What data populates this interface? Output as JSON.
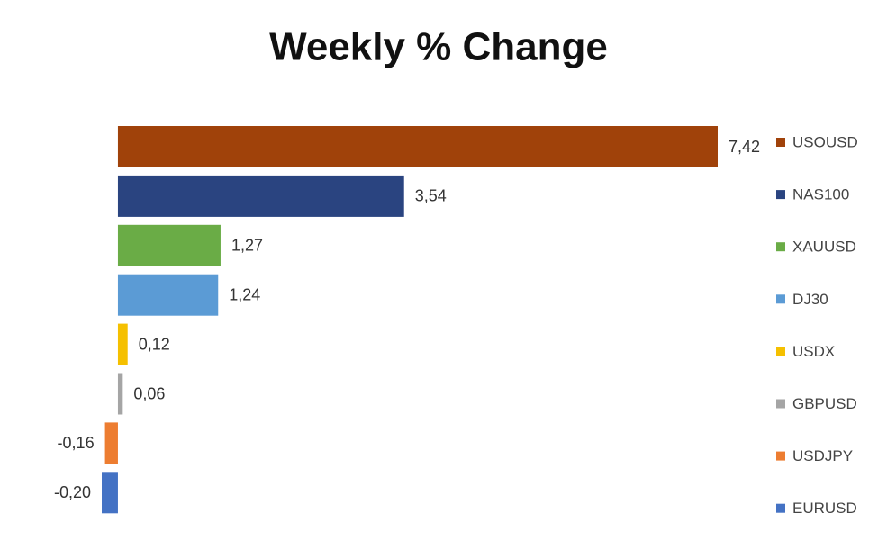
{
  "chart_data": {
    "type": "bar",
    "orientation": "horizontal",
    "title": "Weekly % Change",
    "categories": [
      "USOUSD",
      "NAS100",
      "XAUUSD",
      "DJ30",
      "USDX",
      "GBPUSD",
      "USDJPY",
      "EURUSD"
    ],
    "values": [
      7.42,
      3.54,
      1.27,
      1.24,
      0.12,
      0.06,
      -0.16,
      -0.2
    ],
    "value_labels": [
      "7,42",
      "3,54",
      "1,27",
      "1,24",
      "0,12",
      "0,06",
      "-0,16",
      "-0,20"
    ],
    "colors": [
      "#a0420a",
      "#2a4480",
      "#6aac46",
      "#5b9bd5",
      "#f5c000",
      "#a5a5a5",
      "#ed7d31",
      "#4472c4"
    ],
    "legend": "right"
  }
}
